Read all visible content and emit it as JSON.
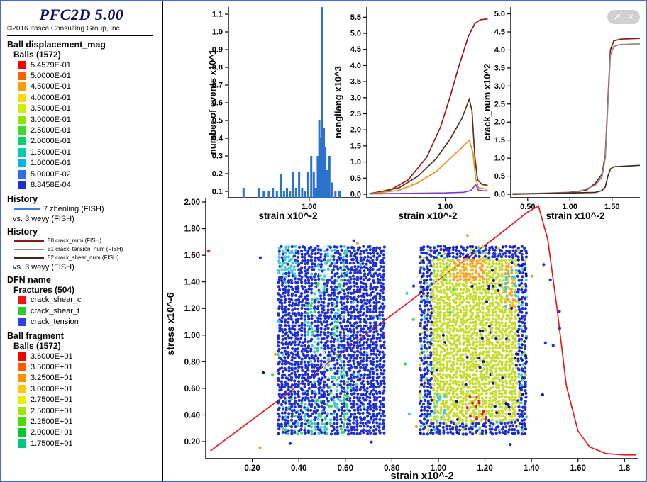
{
  "sidebar": {
    "title": "PFC2D 5.00",
    "copyright": "©2016 Itasca Consulting Group, Inc.",
    "ball_displacement": {
      "heading": "Ball displacement_mag",
      "group": "Balls (1572)",
      "entries": [
        {
          "label": "5.4579E-01",
          "color": "#f80000"
        },
        {
          "label": "5.0000E-01",
          "color": "#ff6000"
        },
        {
          "label": "4.5000E-01",
          "color": "#ff9c00"
        },
        {
          "label": "4.0000E-01",
          "color": "#ffd800"
        },
        {
          "label": "3.5000E-01",
          "color": "#d0ec00"
        },
        {
          "label": "3.0000E-01",
          "color": "#8ce400"
        },
        {
          "label": "2.5000E-01",
          "color": "#3cdc28"
        },
        {
          "label": "2.0000E-01",
          "color": "#00d06e"
        },
        {
          "label": "1.5000E-01",
          "color": "#00ccb4"
        },
        {
          "label": "1.0000E-01",
          "color": "#00b4e4"
        },
        {
          "label": "5.0000E-02",
          "color": "#2f6cf0"
        },
        {
          "label": "8.8458E-04",
          "color": "#1e2fd2"
        }
      ]
    },
    "history_1": {
      "heading": "History",
      "series": [
        {
          "label": "7 zhenling (FISH)",
          "color": "#3d7fd8"
        }
      ],
      "vs": "vs. 3 weyy (FISH)"
    },
    "history_2": {
      "heading": "History",
      "series": [
        {
          "label": "50 crack_num (FISH)",
          "color": "#8a1a1a"
        },
        {
          "label": "51 crack_tension_num (FISH)",
          "color": "#8e8a7c"
        },
        {
          "label": "52 crack_shear_num (FISH)",
          "color": "#41291c"
        }
      ],
      "vs": "vs. 3 weyy (FISH)"
    },
    "dfn": {
      "heading": "DFN name",
      "group": "Fractures (504)",
      "entries": [
        {
          "label": "crack_shear_c",
          "color": "#ee1515"
        },
        {
          "label": "crack_shear_t",
          "color": "#2ccc2c"
        },
        {
          "label": "crack_tension",
          "color": "#2743ea"
        }
      ]
    },
    "ball_fragment": {
      "heading": "Ball fragment",
      "group": "Balls (1572)",
      "entries": [
        {
          "label": "3.6000E+01",
          "color": "#f80000"
        },
        {
          "label": "3.5000E+01",
          "color": "#ff5a00"
        },
        {
          "label": "3.2500E+01",
          "color": "#ff9000"
        },
        {
          "label": "3.0000E+01",
          "color": "#ffc800"
        },
        {
          "label": "2.7500E+01",
          "color": "#e8f000"
        },
        {
          "label": "2.5000E+01",
          "color": "#a0e800"
        },
        {
          "label": "2.2500E+01",
          "color": "#50d800"
        },
        {
          "label": "2.0000E+01",
          "color": "#00c828"
        },
        {
          "label": "1.7500E+01",
          "color": "#00c884"
        }
      ]
    }
  },
  "overlay": {
    "export_glyph": "↗",
    "close_glyph": "×"
  },
  "charts": {
    "events": {
      "type": "bar",
      "ylabel": "number of events x10^1",
      "xlabel": "strain x10^-2",
      "color": "#2b72cc",
      "x_range": [
        0.2,
        1.5
      ],
      "y_ticks": [
        "0.1",
        "0.2",
        "0.3",
        "0.4",
        "0.5",
        "0.6",
        "0.7",
        "0.8",
        "0.9",
        "1.0",
        "1.1"
      ],
      "x_ticks": [
        "1.00"
      ],
      "bars": [
        {
          "x": 0.35,
          "h": 0.12
        },
        {
          "x": 0.5,
          "h": 0.12
        },
        {
          "x": 0.55,
          "h": 0.1
        },
        {
          "x": 0.6,
          "h": 0.1
        },
        {
          "x": 0.64,
          "h": 0.12
        },
        {
          "x": 0.68,
          "h": 0.1
        },
        {
          "x": 0.72,
          "h": 0.2
        },
        {
          "x": 0.75,
          "h": 0.1
        },
        {
          "x": 0.78,
          "h": 0.12
        },
        {
          "x": 0.81,
          "h": 0.1
        },
        {
          "x": 0.84,
          "h": 0.21
        },
        {
          "x": 0.87,
          "h": 0.12
        },
        {
          "x": 0.9,
          "h": 0.21
        },
        {
          "x": 0.93,
          "h": 0.12
        },
        {
          "x": 0.96,
          "h": 0.1
        },
        {
          "x": 0.99,
          "h": 0.21
        },
        {
          "x": 1.02,
          "h": 0.3
        },
        {
          "x": 1.045,
          "h": 0.21
        },
        {
          "x": 1.065,
          "h": 0.12
        },
        {
          "x": 1.085,
          "h": 0.3
        },
        {
          "x": 1.1,
          "h": 0.5
        },
        {
          "x": 1.115,
          "h": 0.4
        },
        {
          "x": 1.13,
          "h": 1.15
        },
        {
          "x": 1.145,
          "h": 0.46
        },
        {
          "x": 1.16,
          "h": 0.35
        },
        {
          "x": 1.18,
          "h": 0.22
        },
        {
          "x": 1.2,
          "h": 0.3
        },
        {
          "x": 1.225,
          "h": 0.15
        },
        {
          "x": 1.26,
          "h": 0.1
        },
        {
          "x": 1.3,
          "h": 0.1
        }
      ]
    },
    "energy": {
      "type": "line",
      "ylabel": "nengliang x10^3",
      "xlabel": "strain x10^-2",
      "x_range": [
        0.15,
        1.48
      ],
      "y_ticks": [
        "0.0",
        "0.5",
        "1.0",
        "1.5",
        "2.0",
        "2.5",
        "3.0",
        "3.5",
        "4.0",
        "4.5",
        "5.0",
        "5.5"
      ],
      "x_ticks": [
        "1.00"
      ],
      "series": [
        {
          "color": "#9b1616",
          "points": [
            [
              0.18,
              0.02
            ],
            [
              0.4,
              0.12
            ],
            [
              0.6,
              0.45
            ],
            [
              0.8,
              1.15
            ],
            [
              0.95,
              2.1
            ],
            [
              1.05,
              3.0
            ],
            [
              1.15,
              4.0
            ],
            [
              1.25,
              4.9
            ],
            [
              1.32,
              5.3
            ],
            [
              1.38,
              5.42
            ],
            [
              1.46,
              5.45
            ]
          ]
        },
        {
          "color": "#5e2f1a",
          "points": [
            [
              0.18,
              0.01
            ],
            [
              0.5,
              0.2
            ],
            [
              0.7,
              0.55
            ],
            [
              0.9,
              1.1
            ],
            [
              1.05,
              1.7
            ],
            [
              1.18,
              2.35
            ],
            [
              1.26,
              2.95
            ],
            [
              1.29,
              2.6
            ],
            [
              1.32,
              1.2
            ],
            [
              1.35,
              0.45
            ],
            [
              1.4,
              0.3
            ],
            [
              1.46,
              0.28
            ]
          ]
        },
        {
          "color": "#f08c1e",
          "points": [
            [
              0.18,
              0.01
            ],
            [
              0.5,
              0.12
            ],
            [
              0.7,
              0.35
            ],
            [
              0.9,
              0.7
            ],
            [
              1.05,
              1.1
            ],
            [
              1.18,
              1.45
            ],
            [
              1.26,
              1.68
            ],
            [
              1.3,
              1.3
            ],
            [
              1.33,
              0.5
            ],
            [
              1.36,
              0.2
            ],
            [
              1.46,
              0.15
            ]
          ]
        },
        {
          "color": "#8438c8",
          "points": [
            [
              0.18,
              0.01
            ],
            [
              1.0,
              0.04
            ],
            [
              1.2,
              0.06
            ],
            [
              1.28,
              0.12
            ],
            [
              1.33,
              0.3
            ],
            [
              1.36,
              0.12
            ],
            [
              1.46,
              0.1
            ]
          ]
        }
      ]
    },
    "crack": {
      "type": "line",
      "ylabel": "crack_num x10^2",
      "xlabel": "strain x10^-2",
      "x_range": [
        0.3,
        1.83
      ],
      "y_ticks": [
        "0.0",
        "0.5",
        "1.0",
        "1.5",
        "2.0",
        "2.5",
        "3.0",
        "3.5",
        "4.0",
        "4.5",
        "5.0"
      ],
      "x_ticks": [
        "0.50",
        "1.00",
        "1.50"
      ],
      "series": [
        {
          "name": "50 crack_num (FISH)",
          "color": "#8a1a1a",
          "points": [
            [
              0.32,
              0.01
            ],
            [
              0.9,
              0.03
            ],
            [
              1.1,
              0.08
            ],
            [
              1.2,
              0.12
            ],
            [
              1.3,
              0.3
            ],
            [
              1.38,
              0.55
            ],
            [
              1.42,
              1.1
            ],
            [
              1.45,
              2.6
            ],
            [
              1.48,
              4.0
            ],
            [
              1.52,
              4.25
            ],
            [
              1.6,
              4.3
            ],
            [
              1.83,
              4.32
            ]
          ]
        },
        {
          "name": "51 crack_tension_num (FISH)",
          "color": "#8e8a7c",
          "points": [
            [
              0.32,
              0.0
            ],
            [
              1.1,
              0.06
            ],
            [
              1.3,
              0.25
            ],
            [
              1.38,
              0.48
            ],
            [
              1.42,
              1.0
            ],
            [
              1.45,
              2.45
            ],
            [
              1.48,
              3.85
            ],
            [
              1.52,
              4.1
            ],
            [
              1.6,
              4.15
            ],
            [
              1.83,
              4.17
            ]
          ]
        },
        {
          "name": "52 crack_shear_num (FISH)",
          "color": "#41291c",
          "points": [
            [
              0.32,
              0.0
            ],
            [
              1.3,
              0.05
            ],
            [
              1.38,
              0.1
            ],
            [
              1.42,
              0.2
            ],
            [
              1.45,
              0.5
            ],
            [
              1.48,
              0.7
            ],
            [
              1.52,
              0.76
            ],
            [
              1.83,
              0.8
            ]
          ]
        }
      ]
    },
    "stress": {
      "type": "line",
      "ylabel": "stress x10^-6",
      "xlabel": "strain x10^-2",
      "color": "#e21b1b",
      "x_range": [
        0,
        1.86
      ],
      "y_ticks": [
        "0.20",
        "0.40",
        "0.60",
        "0.80",
        "1.00",
        "1.20",
        "1.40",
        "1.60",
        "1.80",
        "2.00"
      ],
      "x_ticks": [
        "0.20",
        "0.40",
        "0.60",
        "0.80",
        "1.00",
        "1.20",
        "1.40",
        "1.60",
        "1.8"
      ],
      "points": [
        [
          0.02,
          0.13
        ],
        [
          0.35,
          0.56
        ],
        [
          0.7,
          1.02
        ],
        [
          1.05,
          1.48
        ],
        [
          1.25,
          1.74
        ],
        [
          1.38,
          1.92
        ],
        [
          1.43,
          1.97
        ],
        [
          1.47,
          1.72
        ],
        [
          1.51,
          1.2
        ],
        [
          1.55,
          0.62
        ],
        [
          1.6,
          0.28
        ],
        [
          1.65,
          0.16
        ],
        [
          1.72,
          0.11
        ],
        [
          1.8,
          0.1
        ],
        [
          1.85,
          0.1
        ]
      ]
    }
  },
  "specimens": {
    "left": {
      "strain": [
        0.315,
        0.775
      ],
      "stress": [
        0.26,
        1.66
      ],
      "colors": {
        "base": "#1e2fd2",
        "cyan": "#41c8da",
        "green": "#38d65a",
        "white": "#ddf2fa",
        "yellow": "#c4dc2a"
      }
    },
    "right": {
      "strain": [
        0.925,
        1.385
      ],
      "stress": [
        0.26,
        1.66
      ],
      "colors": {
        "base": "#1e2fd2",
        "yellow": "#c4dc2a",
        "orange": "#ffa01e",
        "red": "#e81e1e",
        "cyan": "#41c8da",
        "green": "#38d65a",
        "navy": "#0c1690"
      }
    },
    "outlier_colors": [
      "#1e2fd2",
      "#41c8da",
      "#38d65a",
      "#ffa01e",
      "#e81e1e",
      "#0c1690"
    ]
  }
}
